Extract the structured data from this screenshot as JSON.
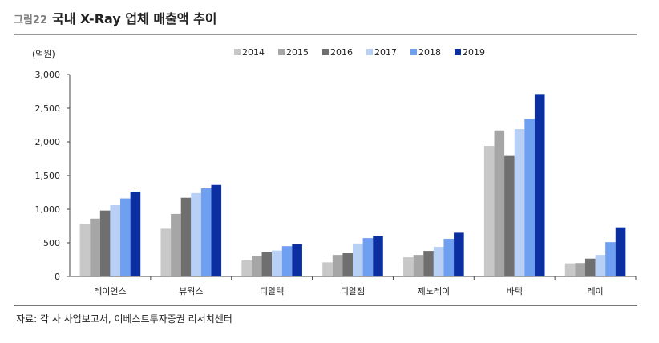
{
  "header": {
    "figure_label": "그림22",
    "title": "국내 X-Ray 업체 매출액 추이"
  },
  "source": "자료: 각 사 사업보고서, 이베스트투자증권 리서치센터",
  "colors": [
    "#c8c8c8",
    "#a6a6a6",
    "#6f6f6f",
    "#b8d0f5",
    "#6e9ff0",
    "#0b2fa0"
  ],
  "chart_data": {
    "type": "bar",
    "unit_label": "(억원)",
    "categories": [
      "레이언스",
      "뷰웍스",
      "디알텍",
      "디알젬",
      "제노레이",
      "바텍",
      "레이"
    ],
    "series": [
      {
        "name": "2014",
        "values": [
          780,
          710,
          240,
          210,
          285,
          1940,
          195
        ]
      },
      {
        "name": "2015",
        "values": [
          860,
          930,
          305,
          320,
          320,
          2170,
          200
        ]
      },
      {
        "name": "2016",
        "values": [
          980,
          1170,
          360,
          345,
          380,
          1790,
          265
        ]
      },
      {
        "name": "2017",
        "values": [
          1060,
          1240,
          385,
          490,
          440,
          2190,
          320
        ]
      },
      {
        "name": "2018",
        "values": [
          1160,
          1310,
          450,
          570,
          560,
          2340,
          510
        ]
      },
      {
        "name": "2019",
        "values": [
          1260,
          1360,
          480,
          600,
          650,
          2710,
          730
        ]
      }
    ],
    "ylim": [
      0,
      3000
    ],
    "yticks": [
      0,
      500,
      1000,
      1500,
      2000,
      2500,
      3000
    ],
    "ytick_labels": [
      "0",
      "500",
      "1,000",
      "1,500",
      "2,000",
      "2,500",
      "3,000"
    ],
    "legend_position": "top-right"
  }
}
